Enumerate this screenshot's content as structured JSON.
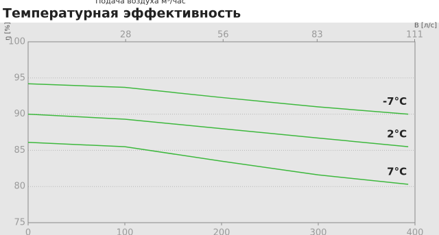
{
  "chart_data": {
    "type": "line",
    "supertitle": "Подача воздуха м³/час",
    "title": "Температурная эффективность",
    "ylabel": "η [%]",
    "x2label": "В [л/с]",
    "x": [
      0,
      100,
      200,
      300,
      393
    ],
    "xlim": [
      0,
      400
    ],
    "xticks": [
      0,
      100,
      200,
      300,
      400
    ],
    "x2lim": [
      0,
      111.1
    ],
    "x2ticks": [
      28,
      56,
      83,
      111
    ],
    "ylim": [
      75,
      100
    ],
    "yticks": [
      75,
      80,
      85,
      90,
      95,
      100
    ],
    "grid": true,
    "series": [
      {
        "name": "-7°C",
        "color": "#3cb83c",
        "values": [
          94.2,
          93.7,
          92.3,
          91.0,
          90.0
        ]
      },
      {
        "name": "2°C",
        "color": "#3cb83c",
        "values": [
          90.0,
          89.3,
          88.0,
          86.7,
          85.5
        ]
      },
      {
        "name": "7°C",
        "color": "#3cb83c",
        "values": [
          86.1,
          85.5,
          83.5,
          81.6,
          80.3
        ]
      }
    ]
  }
}
